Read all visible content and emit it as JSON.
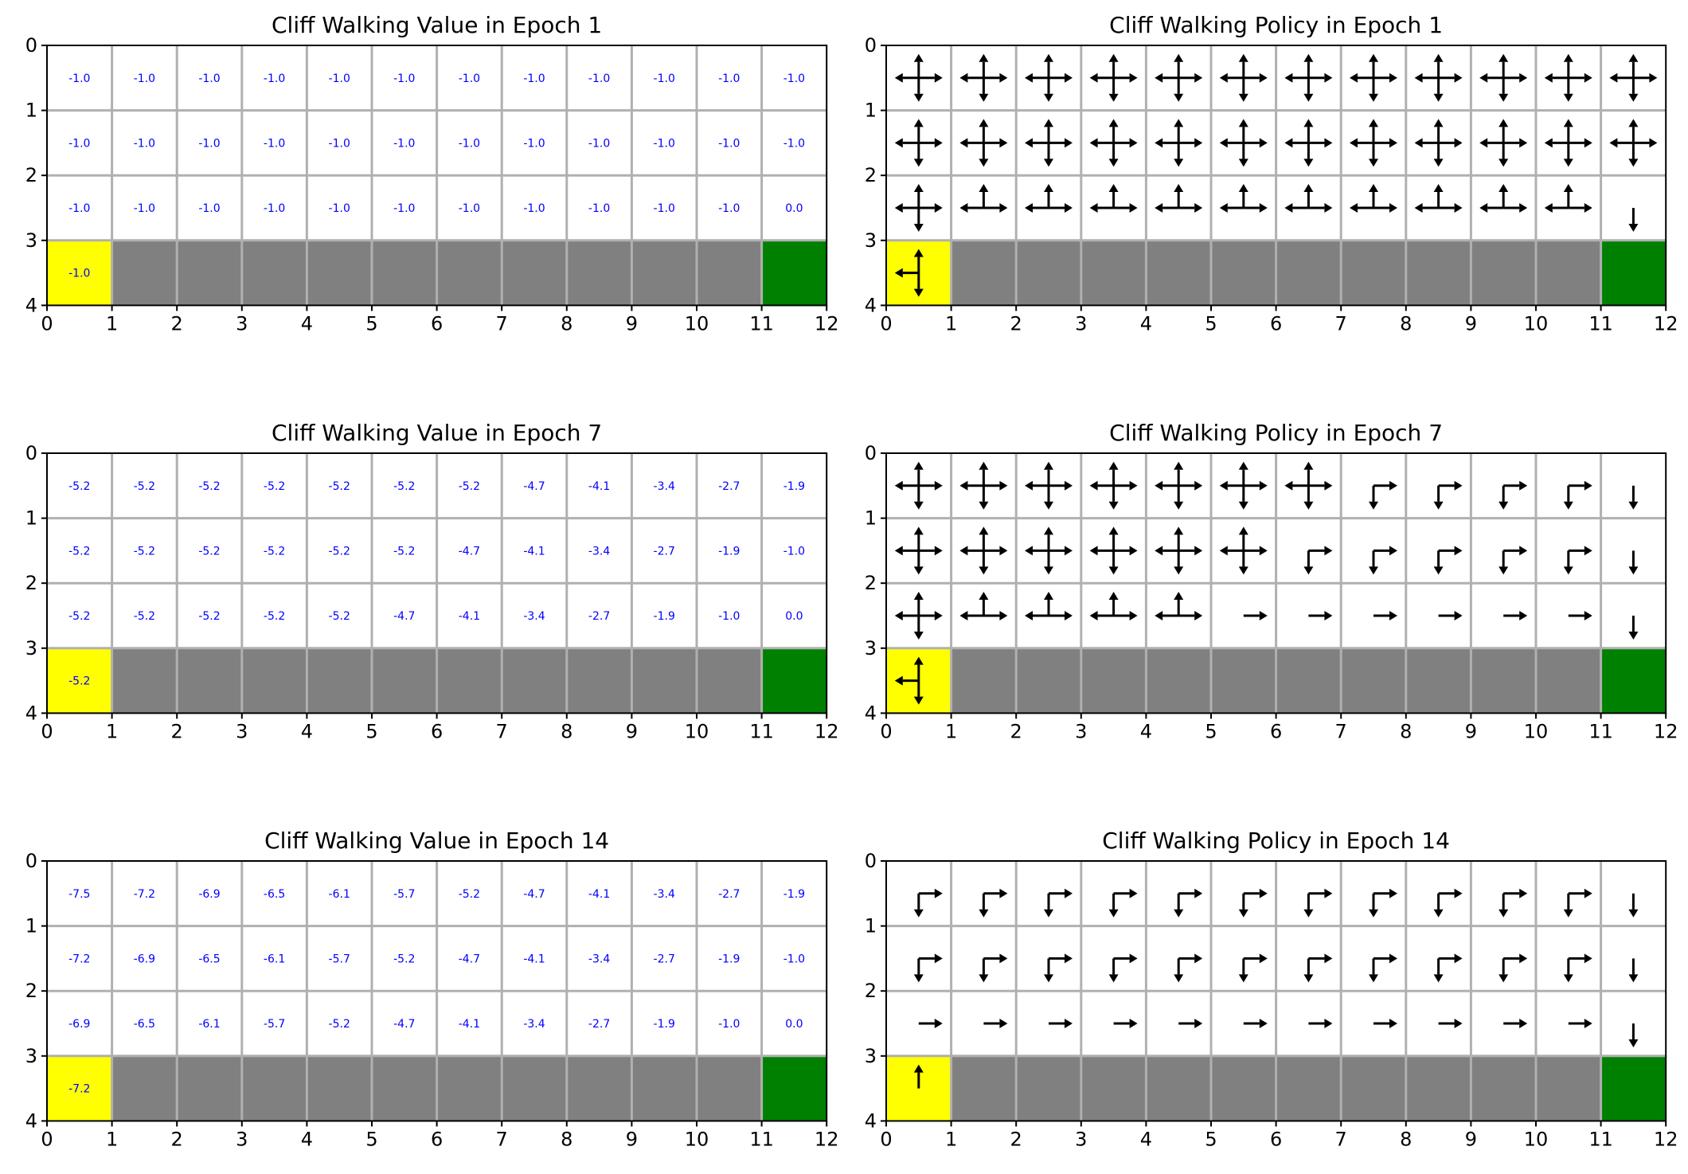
{
  "colors": {
    "start": "#ffff00",
    "cliff": "#808080",
    "goal": "#008000",
    "grid": "#b0b0b0",
    "value_text": "#0000ff",
    "arrow": "#000000"
  },
  "chart_data": [
    {
      "type": "heatmap",
      "title": "Cliff Walking Value in Epoch 1",
      "x_ticks": [
        "0",
        "1",
        "2",
        "3",
        "4",
        "5",
        "6",
        "7",
        "8",
        "9",
        "10",
        "11",
        "12"
      ],
      "y_ticks": [
        "0",
        "1",
        "2",
        "3",
        "4"
      ],
      "xlim": [
        0,
        12
      ],
      "ylim": [
        4,
        0
      ],
      "rows": [
        [
          "-1.0",
          "-1.0",
          "-1.0",
          "-1.0",
          "-1.0",
          "-1.0",
          "-1.0",
          "-1.0",
          "-1.0",
          "-1.0",
          "-1.0",
          "-1.0"
        ],
        [
          "-1.0",
          "-1.0",
          "-1.0",
          "-1.0",
          "-1.0",
          "-1.0",
          "-1.0",
          "-1.0",
          "-1.0",
          "-1.0",
          "-1.0",
          "-1.0"
        ],
        [
          "-1.0",
          "-1.0",
          "-1.0",
          "-1.0",
          "-1.0",
          "-1.0",
          "-1.0",
          "-1.0",
          "-1.0",
          "-1.0",
          "-1.0",
          "0.0"
        ],
        [
          "-1.0"
        ]
      ]
    },
    {
      "type": "heatmap",
      "title": "Cliff Walking Policy in Epoch 1",
      "x_ticks": [
        "0",
        "1",
        "2",
        "3",
        "4",
        "5",
        "6",
        "7",
        "8",
        "9",
        "10",
        "11",
        "12"
      ],
      "y_ticks": [
        "0",
        "1",
        "2",
        "3",
        "4"
      ],
      "xlim": [
        0,
        12
      ],
      "ylim": [
        4,
        0
      ],
      "rows": [
        [
          "udlr",
          "udlr",
          "udlr",
          "udlr",
          "udlr",
          "udlr",
          "udlr",
          "udlr",
          "udlr",
          "udlr",
          "udlr",
          "udlr"
        ],
        [
          "udlr",
          "udlr",
          "udlr",
          "udlr",
          "udlr",
          "udlr",
          "udlr",
          "udlr",
          "udlr",
          "udlr",
          "udlr",
          "udlr"
        ],
        [
          "udlr",
          "ulr",
          "ulr",
          "ulr",
          "ulr",
          "ulr",
          "ulr",
          "ulr",
          "ulr",
          "ulr",
          "ulr",
          "d"
        ],
        [
          "udl"
        ]
      ]
    },
    {
      "type": "heatmap",
      "title": "Cliff Walking Value in Epoch 7",
      "x_ticks": [
        "0",
        "1",
        "2",
        "3",
        "4",
        "5",
        "6",
        "7",
        "8",
        "9",
        "10",
        "11",
        "12"
      ],
      "y_ticks": [
        "0",
        "1",
        "2",
        "3",
        "4"
      ],
      "xlim": [
        0,
        12
      ],
      "ylim": [
        4,
        0
      ],
      "rows": [
        [
          "-5.2",
          "-5.2",
          "-5.2",
          "-5.2",
          "-5.2",
          "-5.2",
          "-5.2",
          "-4.7",
          "-4.1",
          "-3.4",
          "-2.7",
          "-1.9"
        ],
        [
          "-5.2",
          "-5.2",
          "-5.2",
          "-5.2",
          "-5.2",
          "-5.2",
          "-4.7",
          "-4.1",
          "-3.4",
          "-2.7",
          "-1.9",
          "-1.0"
        ],
        [
          "-5.2",
          "-5.2",
          "-5.2",
          "-5.2",
          "-5.2",
          "-4.7",
          "-4.1",
          "-3.4",
          "-2.7",
          "-1.9",
          "-1.0",
          "0.0"
        ],
        [
          "-5.2"
        ]
      ]
    },
    {
      "type": "heatmap",
      "title": "Cliff Walking Policy in Epoch 7",
      "x_ticks": [
        "0",
        "1",
        "2",
        "3",
        "4",
        "5",
        "6",
        "7",
        "8",
        "9",
        "10",
        "11",
        "12"
      ],
      "y_ticks": [
        "0",
        "1",
        "2",
        "3",
        "4"
      ],
      "xlim": [
        0,
        12
      ],
      "ylim": [
        4,
        0
      ],
      "rows": [
        [
          "udlr",
          "udlr",
          "udlr",
          "udlr",
          "udlr",
          "udlr",
          "udlr",
          "dr",
          "dr",
          "dr",
          "dr",
          "d"
        ],
        [
          "udlr",
          "udlr",
          "udlr",
          "udlr",
          "udlr",
          "udlr",
          "dr",
          "dr",
          "dr",
          "dr",
          "dr",
          "d"
        ],
        [
          "udlr",
          "ulr",
          "ulr",
          "ulr",
          "ulr",
          "r",
          "r",
          "r",
          "r",
          "r",
          "r",
          "d"
        ],
        [
          "udl"
        ]
      ]
    },
    {
      "type": "heatmap",
      "title": "Cliff Walking Value in Epoch 14",
      "x_ticks": [
        "0",
        "1",
        "2",
        "3",
        "4",
        "5",
        "6",
        "7",
        "8",
        "9",
        "10",
        "11",
        "12"
      ],
      "y_ticks": [
        "0",
        "1",
        "2",
        "3",
        "4"
      ],
      "xlim": [
        0,
        12
      ],
      "ylim": [
        4,
        0
      ],
      "rows": [
        [
          "-7.5",
          "-7.2",
          "-6.9",
          "-6.5",
          "-6.1",
          "-5.7",
          "-5.2",
          "-4.7",
          "-4.1",
          "-3.4",
          "-2.7",
          "-1.9"
        ],
        [
          "-7.2",
          "-6.9",
          "-6.5",
          "-6.1",
          "-5.7",
          "-5.2",
          "-4.7",
          "-4.1",
          "-3.4",
          "-2.7",
          "-1.9",
          "-1.0"
        ],
        [
          "-6.9",
          "-6.5",
          "-6.1",
          "-5.7",
          "-5.2",
          "-4.7",
          "-4.1",
          "-3.4",
          "-2.7",
          "-1.9",
          "-1.0",
          "0.0"
        ],
        [
          "-7.2"
        ]
      ]
    },
    {
      "type": "heatmap",
      "title": "Cliff Walking Policy in Epoch 14",
      "x_ticks": [
        "0",
        "1",
        "2",
        "3",
        "4",
        "5",
        "6",
        "7",
        "8",
        "9",
        "10",
        "11",
        "12"
      ],
      "y_ticks": [
        "0",
        "1",
        "2",
        "3",
        "4"
      ],
      "xlim": [
        0,
        12
      ],
      "ylim": [
        4,
        0
      ],
      "rows": [
        [
          "dr",
          "dr",
          "dr",
          "dr",
          "dr",
          "dr",
          "dr",
          "dr",
          "dr",
          "dr",
          "dr",
          "d"
        ],
        [
          "dr",
          "dr",
          "dr",
          "dr",
          "dr",
          "dr",
          "dr",
          "dr",
          "dr",
          "dr",
          "dr",
          "d"
        ],
        [
          "r",
          "r",
          "r",
          "r",
          "r",
          "r",
          "r",
          "r",
          "r",
          "r",
          "r",
          "d"
        ],
        [
          "u"
        ]
      ]
    }
  ]
}
